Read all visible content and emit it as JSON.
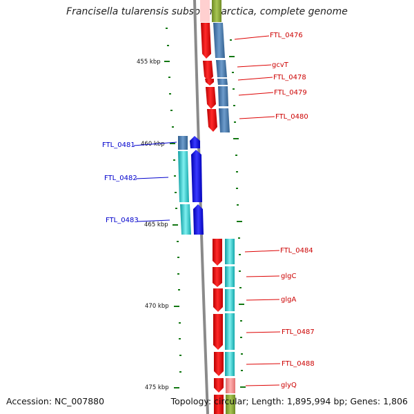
{
  "title": "Francisella tularensis subsp. holarctica, complete genome",
  "accession": "Accession: NC_007880",
  "summary": "Topology: circular; Length: 1,895,994 bp; Genes: 1,806",
  "colors": {
    "forward_cds": "#ee1111",
    "forward_gene": "#4a78a8",
    "reverse_cds": "#1111ee",
    "reverse_gene": "#22c6c8",
    "trna_like": "#f08888",
    "backbone": "#888888",
    "ticks": "#117711",
    "label_forward": "#cc0000",
    "label_reverse": "#0000cc"
  },
  "kbp_ticks": [
    "455 kbp",
    "460 kbp",
    "465 kbp",
    "470 kbp",
    "475 kbp"
  ],
  "forward_labels": [
    "FTL_0476",
    "gcvT",
    "FTL_0478",
    "FTL_0479",
    "FTL_0480",
    "FTL_0484",
    "glgC",
    "glgA",
    "FTL_0487",
    "FTL_0488",
    "glyQ"
  ],
  "reverse_labels": [
    "FTL_0481",
    "FTL_0482",
    "FTL_0483"
  ]
}
